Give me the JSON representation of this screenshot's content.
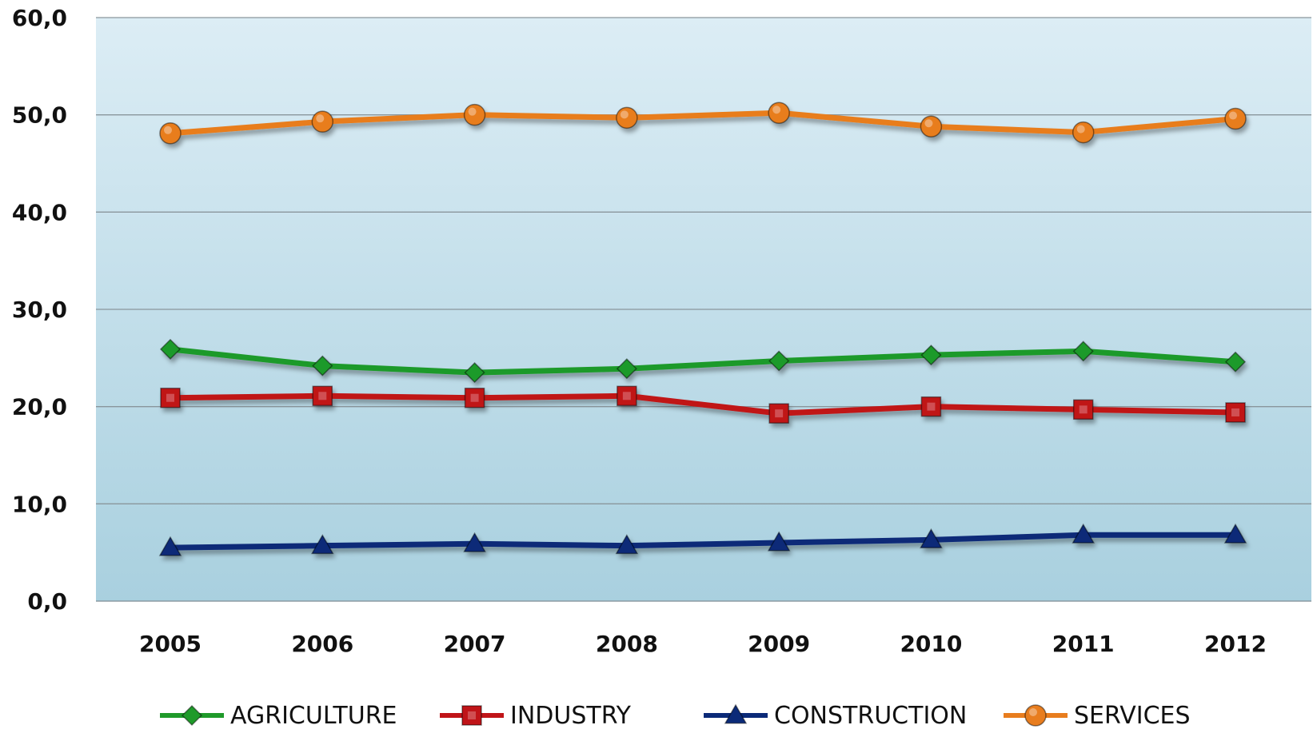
{
  "chart_data": {
    "type": "line",
    "categories": [
      "2005",
      "2006",
      "2007",
      "2008",
      "2009",
      "2010",
      "2011",
      "2012"
    ],
    "y_tick_labels": [
      "0,0",
      "10,0",
      "20,0",
      "30,0",
      "40,0",
      "50,0",
      "60,0"
    ],
    "ylim": [
      0,
      60
    ],
    "grid": true,
    "legend_placement": "bottom",
    "background_gradient": [
      "#dcedf5",
      "#a9d0df"
    ],
    "series": [
      {
        "name": "AGRICULTURE",
        "color": "#1f9a2a",
        "marker": "diamond",
        "values": [
          25.9,
          24.2,
          23.5,
          23.9,
          24.7,
          25.3,
          25.7,
          24.6
        ]
      },
      {
        "name": "INDUSTRY",
        "color": "#c01418",
        "marker": "square",
        "values": [
          20.9,
          21.1,
          20.9,
          21.1,
          19.3,
          20.0,
          19.7,
          19.4
        ]
      },
      {
        "name": "CONSTRUCTION",
        "color": "#0b2a78",
        "marker": "triangle",
        "values": [
          5.5,
          5.7,
          5.9,
          5.7,
          6.0,
          6.3,
          6.8,
          6.8
        ]
      },
      {
        "name": "SERVICES",
        "color": "#e87d1e",
        "marker": "circle",
        "values": [
          48.1,
          49.3,
          50.0,
          49.7,
          50.2,
          48.8,
          48.2,
          49.6
        ]
      }
    ]
  }
}
